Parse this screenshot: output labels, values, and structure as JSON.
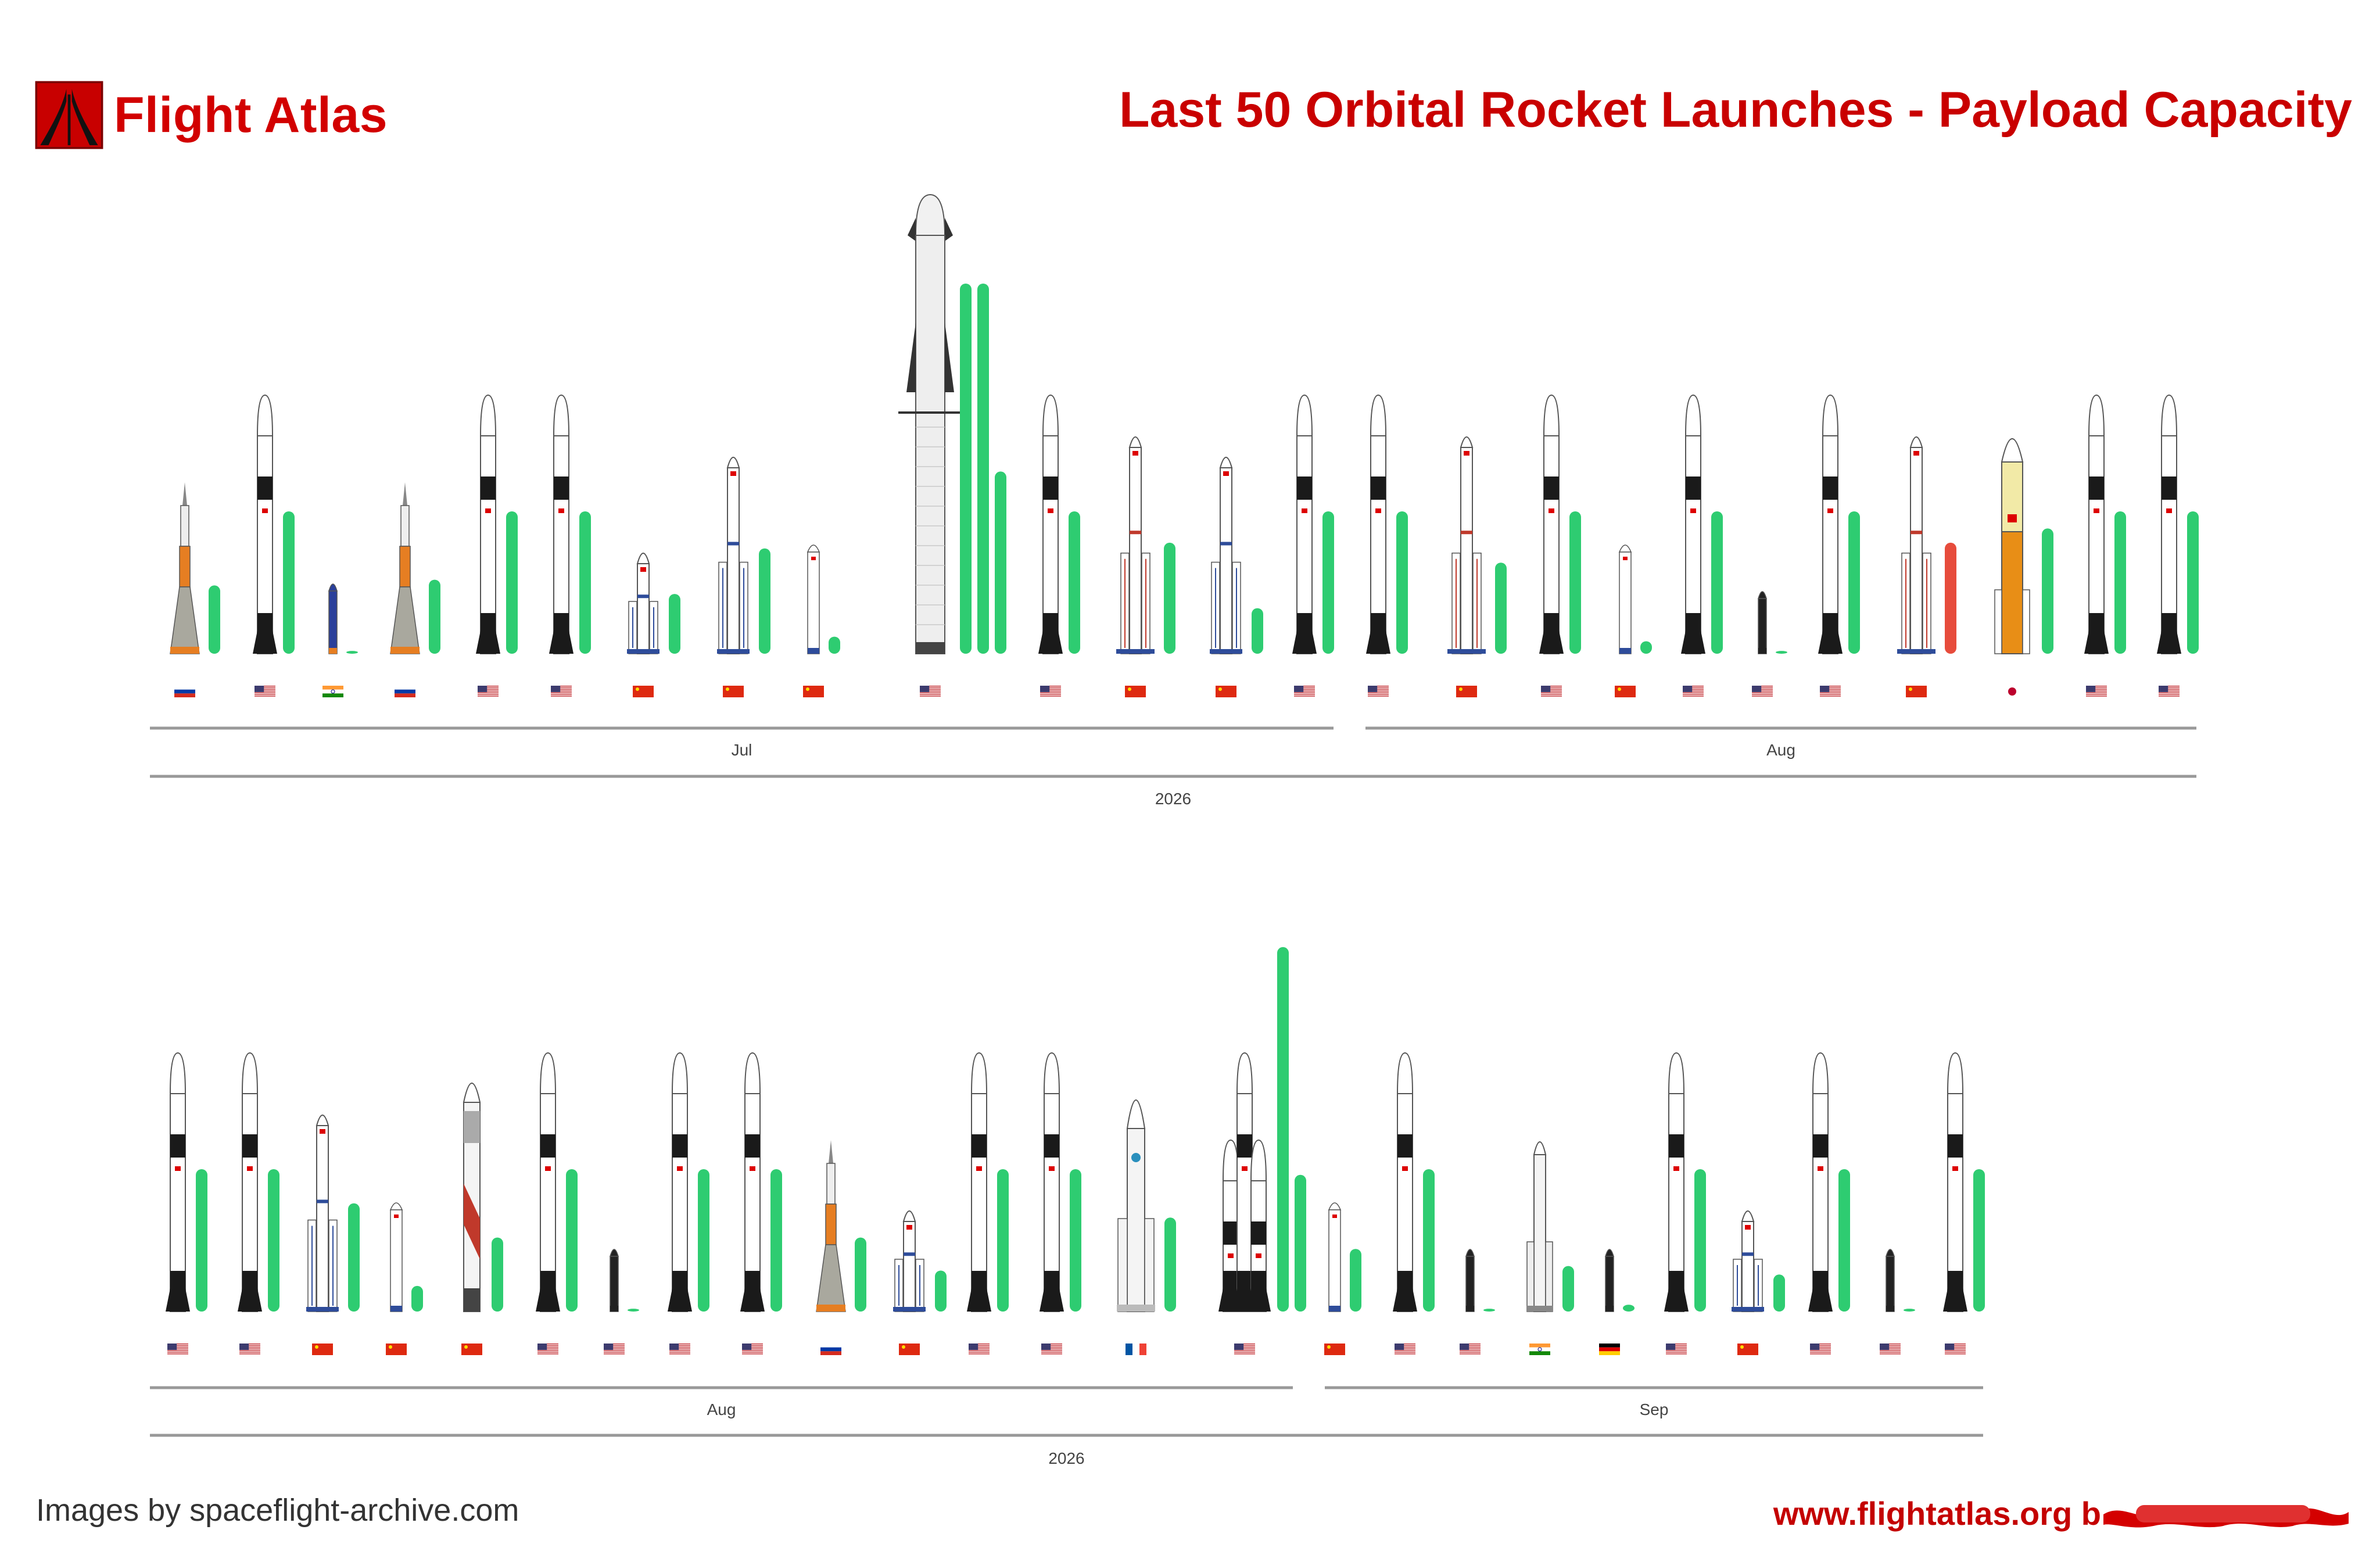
{
  "header": {
    "brand": "Flight Atlas",
    "title": "Last 50 Orbital Rocket Launches - Payload Capacity"
  },
  "footer": {
    "credit": "Images by spaceflight-archive.com",
    "website": "www.flightatlas.org b"
  },
  "colors": {
    "brand_red": "#d20000",
    "bar_green": "#2ecc71",
    "bar_red": "#e74c3c",
    "axis": "#999999"
  },
  "chart_data": {
    "type": "bar",
    "ylabel": "",
    "note": "",
    "rows": [
      {
        "launches": [
          {
            "rocket": "soyuz",
            "flag": "ru",
            "values": [
              1.2
            ]
          },
          {
            "rocket": "falcon9",
            "flag": "us",
            "values": [
              2.5
            ]
          },
          {
            "rocket": "small-in",
            "flag": "in",
            "values": [
              0.05
            ]
          },
          {
            "rocket": "soyuz",
            "flag": "ru",
            "values": [
              1.3
            ]
          },
          {
            "rocket": "falcon9",
            "flag": "us",
            "values": [
              2.5
            ]
          },
          {
            "rocket": "falcon9",
            "flag": "us",
            "values": [
              2.5
            ]
          },
          {
            "rocket": "lm-small",
            "flag": "cn",
            "values": [
              1.05
            ]
          },
          {
            "rocket": "lm-medium",
            "flag": "cn",
            "values": [
              1.85
            ]
          },
          {
            "rocket": "lm-tiny",
            "flag": "cn",
            "values": [
              0.3
            ]
          },
          {
            "rocket": "starship",
            "flag": "us",
            "values": [
              6.5,
              6.5,
              3.2
            ]
          },
          {
            "rocket": "falcon9",
            "flag": "us",
            "values": [
              2.5
            ]
          },
          {
            "rocket": "lm-large",
            "flag": "cn",
            "values": [
              1.95
            ]
          },
          {
            "rocket": "lm-medium",
            "flag": "cn",
            "values": [
              0.8
            ]
          },
          {
            "rocket": "falcon9",
            "flag": "us",
            "values": [
              2.5
            ]
          },
          {
            "rocket": "falcon9",
            "flag": "us",
            "values": [
              2.5
            ]
          },
          {
            "rocket": "lm-large",
            "flag": "cn",
            "values": [
              1.6
            ]
          },
          {
            "rocket": "falcon9",
            "flag": "us",
            "values": [
              2.5
            ]
          },
          {
            "rocket": "lm-tiny",
            "flag": "cn",
            "values": [
              0.22
            ]
          },
          {
            "rocket": "falcon9",
            "flag": "us",
            "values": [
              2.5
            ]
          },
          {
            "rocket": "small-black",
            "flag": "us",
            "values": [
              0.05
            ]
          },
          {
            "rocket": "falcon9",
            "flag": "us",
            "values": [
              2.5
            ]
          },
          {
            "rocket": "lm-large",
            "flag": "cn",
            "values": [
              1.95
            ],
            "failed": true
          },
          {
            "rocket": "h3",
            "flag": "jp",
            "values": [
              2.2
            ]
          },
          {
            "rocket": "falcon9",
            "flag": "us",
            "values": [
              2.5
            ]
          },
          {
            "rocket": "falcon9",
            "flag": "us",
            "values": [
              2.5
            ]
          }
        ],
        "months": [
          {
            "label": "Jul",
            "from": 0,
            "to": 13
          },
          {
            "label": "Aug",
            "from": 14,
            "to": 24
          }
        ],
        "year": "2026"
      },
      {
        "launches": [
          {
            "rocket": "falcon9",
            "flag": "us",
            "values": [
              2.5
            ]
          },
          {
            "rocket": "falcon9",
            "flag": "us",
            "values": [
              2.5
            ]
          },
          {
            "rocket": "lm-medium",
            "flag": "cn",
            "values": [
              1.9
            ]
          },
          {
            "rocket": "lm-tiny",
            "flag": "cn",
            "values": [
              0.45
            ]
          },
          {
            "rocket": "zhuque",
            "flag": "cn",
            "values": [
              1.3
            ]
          },
          {
            "rocket": "falcon9",
            "flag": "us",
            "values": [
              2.5
            ]
          },
          {
            "rocket": "small-black",
            "flag": "us",
            "values": [
              0.05
            ]
          },
          {
            "rocket": "falcon9",
            "flag": "us",
            "values": [
              2.5
            ]
          },
          {
            "rocket": "falcon9",
            "flag": "us",
            "values": [
              2.5
            ]
          },
          {
            "rocket": "soyuz",
            "flag": "ru",
            "values": [
              1.3
            ]
          },
          {
            "rocket": "lm-small",
            "flag": "cn",
            "values": [
              0.72
            ]
          },
          {
            "rocket": "falcon9",
            "flag": "us",
            "values": [
              2.5
            ]
          },
          {
            "rocket": "falcon9",
            "flag": "us",
            "values": [
              2.5
            ]
          },
          {
            "rocket": "ariane6",
            "flag": "fr",
            "values": [
              1.65
            ]
          },
          {
            "rocket": "falcon-heavy",
            "flag": "us",
            "values": [
              6.4,
              2.4
            ]
          },
          {
            "rocket": "lm-tiny",
            "flag": "cn",
            "values": [
              1.1
            ]
          },
          {
            "rocket": "falcon9",
            "flag": "us",
            "values": [
              2.5
            ]
          },
          {
            "rocket": "small-black",
            "flag": "us",
            "values": [
              0.05
            ]
          },
          {
            "rocket": "gslv",
            "flag": "in",
            "values": [
              0.8
            ]
          },
          {
            "rocket": "small-black",
            "flag": "de",
            "values": [
              0.12
            ]
          },
          {
            "rocket": "falcon9",
            "flag": "us",
            "values": [
              2.5
            ]
          },
          {
            "rocket": "lm-small",
            "flag": "cn",
            "values": [
              0.65
            ]
          },
          {
            "rocket": "falcon9",
            "flag": "us",
            "values": [
              2.5
            ]
          },
          {
            "rocket": "small-black",
            "flag": "us",
            "values": [
              0.05
            ]
          },
          {
            "rocket": "falcon9",
            "flag": "us",
            "values": [
              2.5
            ]
          }
        ],
        "months": [
          {
            "label": "Aug",
            "from": 0,
            "to": 15
          },
          {
            "label": "Sep",
            "from": 16,
            "to": 24
          }
        ],
        "year": "2026"
      }
    ]
  }
}
